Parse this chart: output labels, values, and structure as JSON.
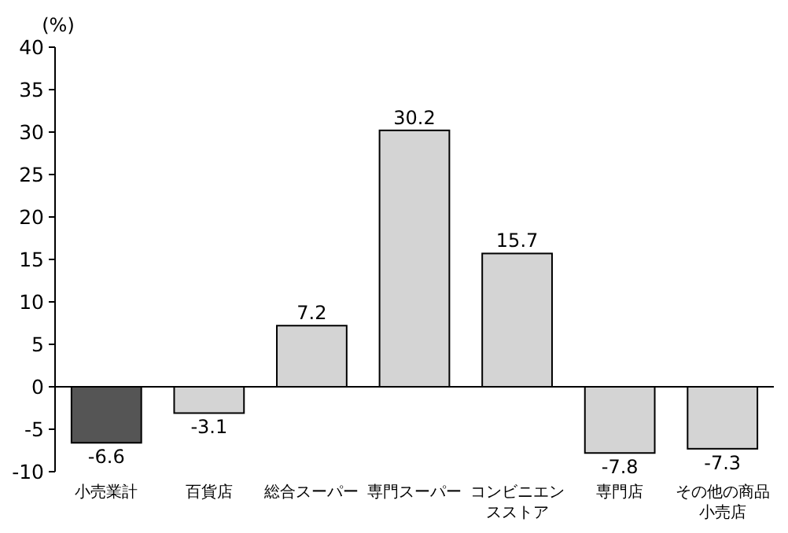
{
  "chart_data": {
    "type": "bar",
    "ylabel": "(%)",
    "categories": [
      "小売業計",
      "百貨店",
      "総合スーパー",
      "専門スーパー",
      "コンビニエンスストア",
      "専門店",
      "その他の商品小売店"
    ],
    "values": [
      -6.6,
      -3.1,
      7.2,
      30.2,
      15.7,
      -7.8,
      -7.3
    ],
    "colors": [
      "#555555",
      "#d4d4d4",
      "#d4d4d4",
      "#d4d4d4",
      "#d4d4d4",
      "#d4d4d4",
      "#d4d4d4"
    ],
    "ylim": [
      -10,
      40
    ],
    "yticks": [
      -10,
      -5,
      0,
      5,
      10,
      15,
      20,
      25,
      30,
      35,
      40
    ],
    "data_labels": true
  }
}
